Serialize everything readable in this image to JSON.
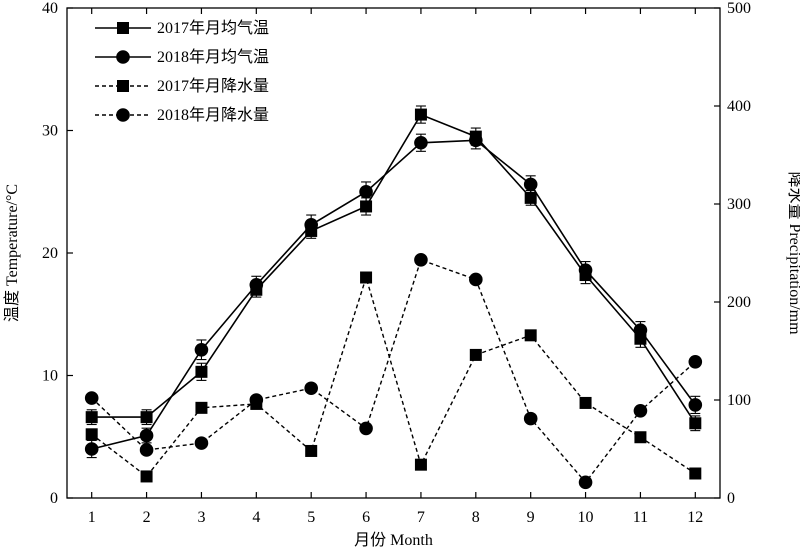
{
  "chart_data": {
    "type": "line",
    "x": [
      1,
      2,
      3,
      4,
      5,
      6,
      7,
      8,
      9,
      10,
      11,
      12
    ],
    "xlabel": "月份 Month",
    "ylabel": "温度 Temperature/°C",
    "y2label": "降水量 Precipitation/mm",
    "xlim": [
      0.55,
      12.45
    ],
    "ylim": [
      0,
      40
    ],
    "y2lim": [
      0,
      500
    ],
    "xticks": [
      1,
      2,
      3,
      4,
      5,
      6,
      7,
      8,
      9,
      10,
      11,
      12
    ],
    "yticks": [
      0,
      10,
      20,
      30,
      40
    ],
    "y2ticks": [
      0,
      100,
      200,
      300,
      400,
      500
    ],
    "grid": false,
    "legend_position": "top-left",
    "series": [
      {
        "name": "2017年月均气温",
        "axis": "left",
        "marker": "square",
        "line": "solid",
        "values": [
          6.6,
          6.6,
          10.3,
          17.0,
          21.8,
          23.8,
          31.3,
          29.5,
          24.5,
          18.2,
          13.0,
          6.1
        ],
        "errors": [
          0.6,
          0.6,
          0.7,
          0.6,
          0.6,
          0.7,
          0.7,
          0.7,
          0.6,
          0.7,
          0.7,
          0.6
        ]
      },
      {
        "name": "2018年月均气温",
        "axis": "left",
        "marker": "circle",
        "line": "solid",
        "values": [
          4.0,
          5.1,
          12.1,
          17.4,
          22.3,
          25.0,
          29.0,
          29.2,
          25.6,
          18.6,
          13.7,
          7.6
        ],
        "errors": [
          0.7,
          0.6,
          0.8,
          0.7,
          0.8,
          0.8,
          0.7,
          0.7,
          0.7,
          0.7,
          0.7,
          0.7
        ]
      },
      {
        "name": "2017年月降水量",
        "axis": "right",
        "marker": "square",
        "line": "dashed",
        "values": [
          65,
          22,
          92,
          96,
          48,
          225,
          34,
          146,
          166,
          97,
          62,
          25
        ]
      },
      {
        "name": "2018年月降水量",
        "axis": "right",
        "marker": "circle",
        "line": "dashed",
        "values": [
          102,
          49,
          56,
          100,
          112,
          71,
          243,
          223,
          81,
          16,
          89,
          139
        ]
      }
    ]
  }
}
